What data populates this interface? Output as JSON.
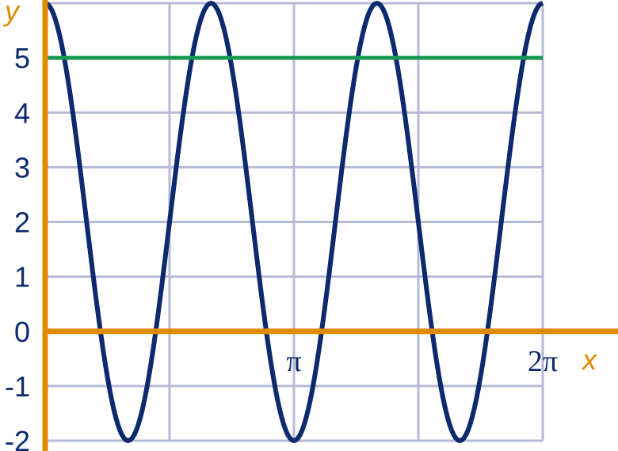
{
  "chart_data": {
    "type": "line",
    "title": "",
    "xlabel": "x",
    "ylabel": "y",
    "xlim": [
      0,
      6.2832
    ],
    "ylim": [
      -2,
      6
    ],
    "grid": true,
    "x_ticks": [
      {
        "value": 3.1416,
        "label": "π"
      },
      {
        "value": 6.2832,
        "label": "2π"
      }
    ],
    "y_ticks": [
      -2,
      -1,
      0,
      1,
      2,
      3,
      4,
      5
    ],
    "series": [
      {
        "function": "y = 2 + 4·cos(3x)",
        "domain": [
          0,
          6.2832
        ],
        "samples": 241,
        "color": "#0d2a6e"
      },
      {
        "function": "y = 5",
        "values": [
          5,
          5
        ],
        "x": [
          0,
          6.2832
        ],
        "color": "#17984e"
      }
    ],
    "colors": {
      "axis": "#e08a00",
      "grid": "#b6bad6",
      "labels": "#0d2a6e"
    }
  }
}
